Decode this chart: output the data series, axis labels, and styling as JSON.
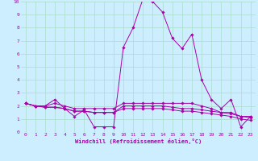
{
  "xlabel": "Windchill (Refroidissement éolien,°C)",
  "background_color": "#cceeff",
  "grid_color": "#aaddcc",
  "line_color": "#aa00aa",
  "xlim": [
    -0.5,
    23.5
  ],
  "ylim": [
    0,
    10
  ],
  "xticks": [
    0,
    1,
    2,
    3,
    4,
    5,
    6,
    7,
    8,
    9,
    10,
    11,
    12,
    13,
    14,
    15,
    16,
    17,
    18,
    19,
    20,
    21,
    22,
    23
  ],
  "yticks": [
    0,
    1,
    2,
    3,
    4,
    5,
    6,
    7,
    8,
    9,
    10
  ],
  "series": [
    [
      2.2,
      2.0,
      2.0,
      2.5,
      1.8,
      1.2,
      1.7,
      0.4,
      0.4,
      0.4,
      6.5,
      8.0,
      10.2,
      10.0,
      9.2,
      7.2,
      6.4,
      7.5,
      4.0,
      2.5,
      1.8,
      2.5,
      0.4,
      1.2
    ],
    [
      2.2,
      2.0,
      2.0,
      2.2,
      2.0,
      1.8,
      1.8,
      1.8,
      1.8,
      1.8,
      2.2,
      2.2,
      2.2,
      2.2,
      2.2,
      2.2,
      2.2,
      2.2,
      2.0,
      1.8,
      1.5,
      1.5,
      1.2,
      1.2
    ],
    [
      2.2,
      2.0,
      1.9,
      1.9,
      1.8,
      1.6,
      1.6,
      1.5,
      1.5,
      1.5,
      2.0,
      2.0,
      2.0,
      2.0,
      2.0,
      1.9,
      1.8,
      1.8,
      1.7,
      1.6,
      1.5,
      1.4,
      1.2,
      1.1
    ],
    [
      2.2,
      2.0,
      1.9,
      1.9,
      1.8,
      1.6,
      1.6,
      1.5,
      1.5,
      1.5,
      1.8,
      1.8,
      1.8,
      1.8,
      1.8,
      1.7,
      1.6,
      1.6,
      1.5,
      1.4,
      1.3,
      1.2,
      1.0,
      0.9
    ]
  ]
}
